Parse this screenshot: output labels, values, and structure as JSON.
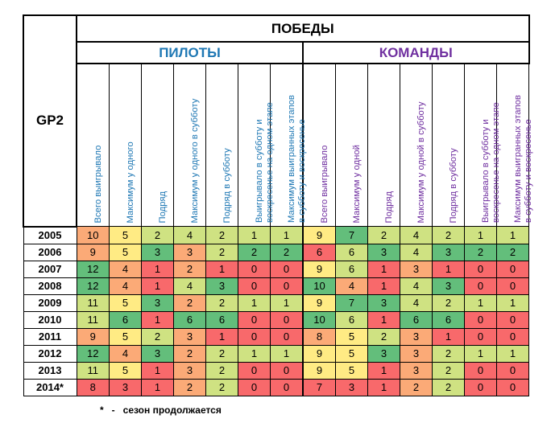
{
  "table": {
    "corner_label": "GP2",
    "title": "ПОБЕДЫ",
    "groups": [
      {
        "label": "ПИЛОТЫ",
        "color": "#1f78b4"
      },
      {
        "label": "КОМАНДЫ",
        "color": "#7030a0"
      }
    ],
    "pilot_columns": [
      "Всего выигрывало",
      "Максимум у одного",
      "Подряд",
      "Максимум у одного в субботу",
      "Подряд в субботу",
      "Выигрывало в субботу и|воскресенье на одном этапе",
      "Максимум выигранных этапов|в субботу и воскресенье"
    ],
    "team_columns": [
      "Всего выигрывало",
      "Максимум у одной",
      "Подряд",
      "Максимум у одной в субботу",
      "Подряд в субботу",
      "Выигрывало в субботу и|воскресенье на одном этапе",
      "Максимум выигранных этапов|в субботу и воскресенье"
    ],
    "rows": [
      {
        "year": "2005",
        "values": [
          10,
          5,
          2,
          4,
          2,
          1,
          1,
          9,
          7,
          2,
          4,
          2,
          1,
          1
        ]
      },
      {
        "year": "2006",
        "values": [
          9,
          5,
          3,
          3,
          2,
          2,
          2,
          6,
          6,
          3,
          4,
          3,
          2,
          2
        ]
      },
      {
        "year": "2007",
        "values": [
          12,
          4,
          1,
          2,
          1,
          0,
          0,
          9,
          6,
          1,
          3,
          1,
          0,
          0
        ]
      },
      {
        "year": "2008",
        "values": [
          12,
          4,
          1,
          4,
          3,
          0,
          0,
          10,
          4,
          1,
          4,
          3,
          0,
          0
        ]
      },
      {
        "year": "2009",
        "values": [
          11,
          5,
          3,
          2,
          2,
          1,
          1,
          9,
          7,
          3,
          4,
          2,
          1,
          1
        ]
      },
      {
        "year": "2010",
        "values": [
          11,
          6,
          1,
          6,
          6,
          0,
          0,
          10,
          6,
          1,
          6,
          6,
          0,
          0
        ]
      },
      {
        "year": "2011",
        "values": [
          9,
          5,
          2,
          3,
          1,
          0,
          0,
          8,
          5,
          2,
          3,
          1,
          0,
          0
        ]
      },
      {
        "year": "2012",
        "values": [
          12,
          4,
          3,
          2,
          2,
          1,
          1,
          9,
          5,
          3,
          3,
          2,
          1,
          1
        ]
      },
      {
        "year": "2013",
        "values": [
          11,
          5,
          1,
          3,
          2,
          0,
          0,
          9,
          5,
          1,
          3,
          2,
          0,
          0
        ]
      },
      {
        "year": "2014*",
        "values": [
          8,
          3,
          1,
          2,
          2,
          0,
          0,
          7,
          3,
          1,
          2,
          2,
          0,
          0
        ]
      }
    ],
    "colors": {
      "red": "#f8696b",
      "orange": "#fbaa77",
      "yellow": "#ffeb84",
      "lightgreen": "#cfe282",
      "green": "#63be7b"
    },
    "cell_colors": [
      [
        "orange",
        "yellow",
        "lightgreen",
        "lightgreen",
        "lightgreen",
        "lightgreen",
        "lightgreen",
        "yellow",
        "green",
        "lightgreen",
        "lightgreen",
        "lightgreen",
        "lightgreen",
        "lightgreen"
      ],
      [
        "orange",
        "yellow",
        "green",
        "orange",
        "lightgreen",
        "green",
        "green",
        "red",
        "lightgreen",
        "green",
        "lightgreen",
        "green",
        "green",
        "green"
      ],
      [
        "green",
        "orange",
        "red",
        "orange",
        "red",
        "red",
        "red",
        "yellow",
        "lightgreen",
        "red",
        "orange",
        "red",
        "red",
        "red"
      ],
      [
        "green",
        "orange",
        "red",
        "lightgreen",
        "green",
        "red",
        "red",
        "green",
        "orange",
        "red",
        "lightgreen",
        "green",
        "red",
        "red"
      ],
      [
        "lightgreen",
        "yellow",
        "green",
        "orange",
        "lightgreen",
        "lightgreen",
        "lightgreen",
        "yellow",
        "green",
        "green",
        "lightgreen",
        "lightgreen",
        "lightgreen",
        "lightgreen"
      ],
      [
        "lightgreen",
        "green",
        "red",
        "green",
        "green",
        "red",
        "red",
        "green",
        "lightgreen",
        "red",
        "green",
        "green",
        "red",
        "red"
      ],
      [
        "orange",
        "yellow",
        "lightgreen",
        "orange",
        "red",
        "red",
        "red",
        "orange",
        "yellow",
        "lightgreen",
        "orange",
        "red",
        "red",
        "red"
      ],
      [
        "green",
        "orange",
        "green",
        "orange",
        "lightgreen",
        "lightgreen",
        "lightgreen",
        "yellow",
        "yellow",
        "green",
        "orange",
        "lightgreen",
        "lightgreen",
        "lightgreen"
      ],
      [
        "lightgreen",
        "yellow",
        "red",
        "orange",
        "lightgreen",
        "red",
        "red",
        "yellow",
        "yellow",
        "red",
        "orange",
        "lightgreen",
        "red",
        "red"
      ],
      [
        "red",
        "red",
        "red",
        "orange",
        "lightgreen",
        "red",
        "red",
        "red",
        "red",
        "red",
        "orange",
        "lightgreen",
        "red",
        "red"
      ]
    ]
  },
  "footnote": "*   -   сезон продолжается"
}
